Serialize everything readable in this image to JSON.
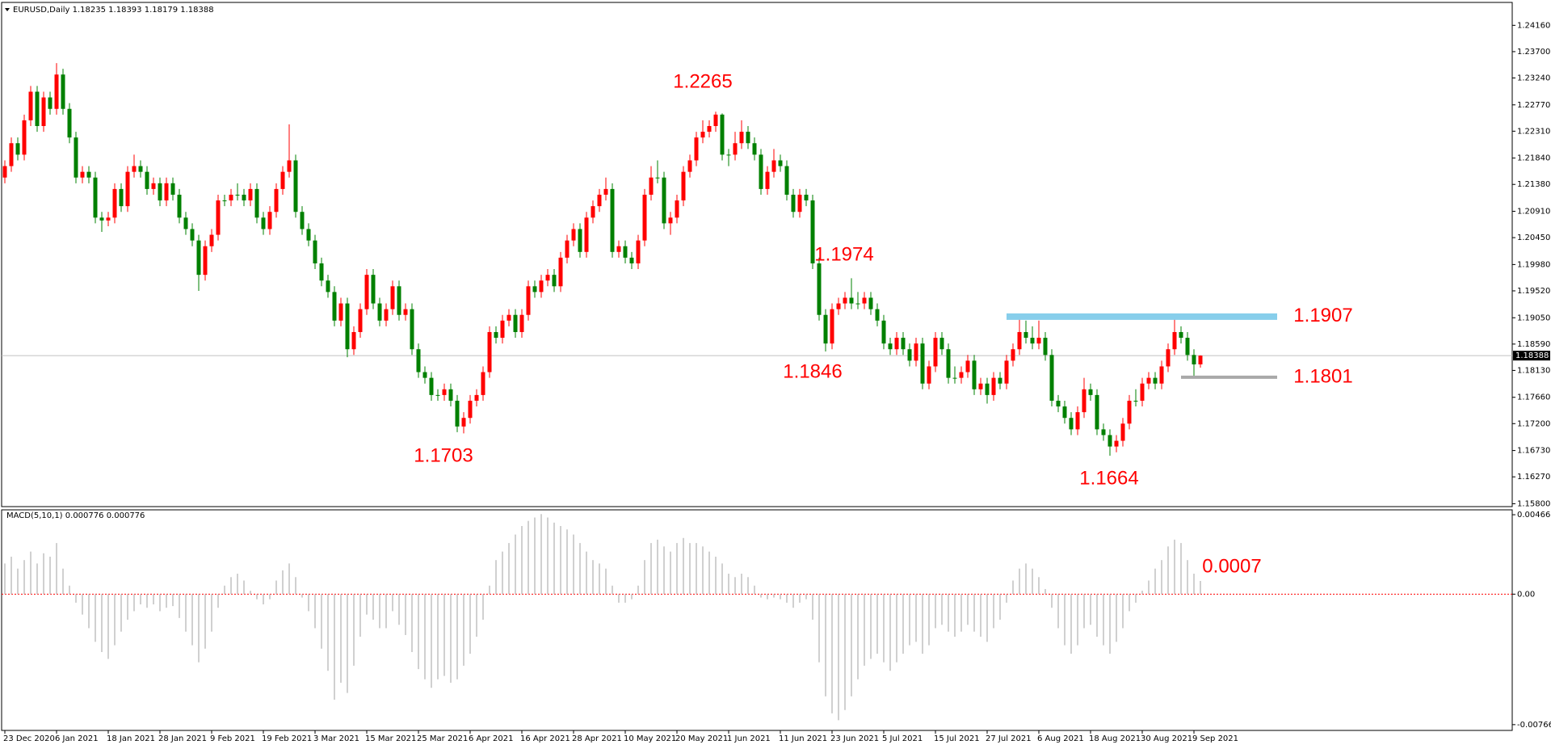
{
  "chart_data": [
    {
      "type": "candlestick",
      "symbol": "EURUSD,Daily",
      "up_color": "#ff0000",
      "down_color": "#008000",
      "price_line_color": "#c0c0c0",
      "categories": [
        "23 Dec 2020",
        null,
        null,
        null,
        null,
        null,
        null,
        null,
        "6 Jan 2021",
        null,
        null,
        null,
        null,
        null,
        null,
        null,
        "18 Jan 2021",
        null,
        null,
        null,
        null,
        null,
        null,
        null,
        "28 Jan 2021",
        null,
        null,
        null,
        null,
        null,
        null,
        null,
        "9 Feb 2021",
        null,
        null,
        null,
        null,
        null,
        null,
        null,
        "19 Feb 2021",
        null,
        null,
        null,
        null,
        null,
        null,
        null,
        "3 Mar 2021",
        null,
        null,
        null,
        null,
        null,
        null,
        null,
        "15 Mar 2021",
        null,
        null,
        null,
        null,
        null,
        null,
        null,
        "25 Mar 2021",
        null,
        null,
        null,
        null,
        null,
        null,
        null,
        "6 Apr 2021",
        null,
        null,
        null,
        null,
        null,
        null,
        null,
        "16 Apr 2021",
        null,
        null,
        null,
        null,
        null,
        null,
        null,
        "28 Apr 2021",
        null,
        null,
        null,
        null,
        null,
        null,
        null,
        "10 May 2021",
        null,
        null,
        null,
        null,
        null,
        null,
        null,
        "20 May 2021",
        null,
        null,
        null,
        null,
        null,
        null,
        null,
        "1 Jun 2021",
        null,
        null,
        null,
        null,
        null,
        null,
        null,
        "11 Jun 2021",
        null,
        null,
        null,
        null,
        null,
        null,
        null,
        "23 Jun 2021",
        null,
        null,
        null,
        null,
        null,
        null,
        null,
        "5 Jul 2021",
        null,
        null,
        null,
        null,
        null,
        null,
        null,
        "15 Jul 2021",
        null,
        null,
        null,
        null,
        null,
        null,
        null,
        "27 Jul 2021",
        null,
        null,
        null,
        null,
        null,
        null,
        null,
        "6 Aug 2021",
        null,
        null,
        null,
        null,
        null,
        null,
        null,
        "18 Aug 2021",
        null,
        null,
        null,
        null,
        null,
        null,
        null,
        "30 Aug 2021",
        null,
        null,
        null,
        null,
        null,
        null,
        null,
        "9 Sep 2021",
        null
      ],
      "open": [
        1.215,
        1.217,
        1.221,
        1.219,
        1.225,
        1.23,
        1.224,
        1.229,
        1.227,
        1.233,
        1.227,
        1.222,
        1.215,
        1.216,
        1.215,
        1.208,
        1.2075,
        1.208,
        1.213,
        1.21,
        1.216,
        1.217,
        1.216,
        1.213,
        1.214,
        1.211,
        1.214,
        1.212,
        1.208,
        1.206,
        1.204,
        1.198,
        1.203,
        1.205,
        1.211,
        1.211,
        1.212,
        1.212,
        1.211,
        1.213,
        1.208,
        1.206,
        1.209,
        1.213,
        1.216,
        1.218,
        1.209,
        1.206,
        1.204,
        1.2,
        1.197,
        1.195,
        1.19,
        1.193,
        1.185,
        1.188,
        1.192,
        1.198,
        1.193,
        1.19,
        1.192,
        1.196,
        1.191,
        1.192,
        1.185,
        1.181,
        1.18,
        1.177,
        1.177,
        1.178,
        1.176,
        1.1715,
        1.173,
        1.176,
        1.177,
        1.181,
        1.188,
        1.187,
        1.19,
        1.191,
        1.188,
        1.191,
        1.196,
        1.195,
        1.197,
        1.198,
        1.196,
        1.201,
        1.204,
        1.206,
        1.202,
        1.208,
        1.21,
        1.212,
        1.213,
        1.202,
        1.203,
        1.201,
        1.2,
        1.204,
        1.212,
        1.215,
        1.215,
        1.207,
        1.208,
        1.211,
        1.216,
        1.218,
        1.222,
        1.223,
        1.224,
        1.226,
        1.219,
        1.219,
        1.221,
        1.223,
        1.221,
        1.219,
        1.213,
        1.216,
        1.218,
        1.217,
        1.212,
        1.209,
        1.212,
        1.211,
        1.2,
        1.191,
        1.186,
        1.192,
        1.193,
        1.194,
        1.193,
        1.193,
        1.194,
        1.192,
        1.19,
        1.186,
        1.185,
        1.187,
        1.185,
        1.183,
        1.186,
        1.179,
        1.182,
        1.187,
        1.185,
        1.18,
        1.18,
        1.181,
        1.183,
        1.178,
        1.179,
        1.177,
        1.18,
        1.179,
        1.183,
        1.185,
        1.188,
        1.187,
        1.186,
        1.187,
        1.184,
        1.176,
        1.175,
        1.173,
        1.171,
        1.174,
        1.178,
        1.177,
        1.171,
        1.17,
        1.168,
        1.169,
        1.172,
        1.176,
        1.176,
        1.179,
        1.18,
        1.179,
        1.182,
        1.185,
        1.188,
        1.187,
        1.184,
        1.18235
      ],
      "high": [
        1.218,
        1.222,
        1.222,
        1.226,
        1.231,
        1.231,
        1.23,
        1.23,
        1.235,
        1.234,
        1.228,
        1.223,
        1.217,
        1.217,
        1.216,
        1.209,
        1.209,
        1.214,
        1.214,
        1.217,
        1.219,
        1.218,
        1.217,
        1.215,
        1.215,
        1.215,
        1.215,
        1.213,
        1.209,
        1.207,
        1.205,
        1.204,
        1.206,
        1.212,
        1.212,
        1.213,
        1.214,
        1.213,
        1.214,
        1.214,
        1.209,
        1.21,
        1.214,
        1.217,
        1.2243,
        1.219,
        1.21,
        1.207,
        1.205,
        1.201,
        1.198,
        1.196,
        1.194,
        1.194,
        1.189,
        1.193,
        1.199,
        1.199,
        1.194,
        1.193,
        1.197,
        1.197,
        1.193,
        1.193,
        1.186,
        1.182,
        1.181,
        1.178,
        1.179,
        1.179,
        1.177,
        1.174,
        1.177,
        1.178,
        1.182,
        1.189,
        1.189,
        1.191,
        1.192,
        1.192,
        1.192,
        1.197,
        1.197,
        1.198,
        1.199,
        1.199,
        1.202,
        1.205,
        1.207,
        1.207,
        1.209,
        1.211,
        1.213,
        1.215,
        1.214,
        1.204,
        1.204,
        1.202,
        1.205,
        1.213,
        1.217,
        1.218,
        1.216,
        1.209,
        1.212,
        1.217,
        1.219,
        1.223,
        1.225,
        1.225,
        1.2265,
        1.2262,
        1.22,
        1.223,
        1.225,
        1.224,
        1.222,
        1.22,
        1.217,
        1.22,
        1.219,
        1.218,
        1.213,
        1.213,
        1.213,
        1.212,
        1.201,
        1.192,
        1.193,
        1.194,
        1.195,
        1.1974,
        1.195,
        1.195,
        1.195,
        1.193,
        1.191,
        1.187,
        1.188,
        1.188,
        1.186,
        1.187,
        1.187,
        1.183,
        1.188,
        1.188,
        1.186,
        1.182,
        1.182,
        1.184,
        1.184,
        1.18,
        1.18,
        1.181,
        1.181,
        1.184,
        1.186,
        1.1907,
        1.19,
        1.189,
        1.19,
        1.188,
        1.185,
        1.177,
        1.176,
        1.174,
        1.175,
        1.18,
        1.179,
        1.178,
        1.172,
        1.171,
        1.17,
        1.173,
        1.177,
        1.178,
        1.18,
        1.181,
        1.181,
        1.183,
        1.186,
        1.1907,
        1.189,
        1.188,
        1.185,
        1.18393
      ],
      "low": [
        1.214,
        1.216,
        1.218,
        1.218,
        1.224,
        1.223,
        1.223,
        1.226,
        1.226,
        1.226,
        1.221,
        1.214,
        1.214,
        1.214,
        1.207,
        1.2055,
        1.2065,
        1.207,
        1.209,
        1.209,
        1.215,
        1.215,
        1.212,
        1.212,
        1.21,
        1.21,
        1.211,
        1.207,
        1.205,
        1.203,
        1.1952,
        1.197,
        1.202,
        1.204,
        1.21,
        1.21,
        1.211,
        1.21,
        1.21,
        1.207,
        1.205,
        1.205,
        1.208,
        1.212,
        1.215,
        1.208,
        1.205,
        1.203,
        1.199,
        1.196,
        1.194,
        1.189,
        1.189,
        1.1836,
        1.184,
        1.187,
        1.191,
        1.192,
        1.189,
        1.189,
        1.191,
        1.19,
        1.19,
        1.184,
        1.18,
        1.179,
        1.176,
        1.176,
        1.176,
        1.175,
        1.1705,
        1.1703,
        1.172,
        1.175,
        1.176,
        1.18,
        1.186,
        1.186,
        1.189,
        1.187,
        1.187,
        1.19,
        1.194,
        1.194,
        1.196,
        1.195,
        1.195,
        1.2,
        1.203,
        1.201,
        1.201,
        1.207,
        1.209,
        1.211,
        1.201,
        1.201,
        1.2,
        1.199,
        1.199,
        1.203,
        1.211,
        1.214,
        1.206,
        1.205,
        1.207,
        1.21,
        1.215,
        1.217,
        1.221,
        1.222,
        1.223,
        1.218,
        1.217,
        1.218,
        1.22,
        1.22,
        1.218,
        1.212,
        1.212,
        1.215,
        1.216,
        1.211,
        1.208,
        1.208,
        1.21,
        1.199,
        1.19,
        1.1846,
        1.185,
        1.191,
        1.192,
        1.192,
        1.192,
        1.192,
        1.191,
        1.189,
        1.185,
        1.184,
        1.184,
        1.184,
        1.182,
        1.182,
        1.178,
        1.178,
        1.181,
        1.184,
        1.179,
        1.179,
        1.179,
        1.18,
        1.177,
        1.177,
        1.1755,
        1.176,
        1.178,
        1.178,
        1.182,
        1.184,
        1.186,
        1.185,
        1.185,
        1.183,
        1.175,
        1.174,
        1.172,
        1.17,
        1.17,
        1.173,
        1.176,
        1.17,
        1.169,
        1.1664,
        1.167,
        1.168,
        1.171,
        1.175,
        1.175,
        1.178,
        1.178,
        1.178,
        1.181,
        1.184,
        1.186,
        1.183,
        1.1801,
        1.18179
      ],
      "close": [
        1.217,
        1.221,
        1.219,
        1.225,
        1.23,
        1.224,
        1.229,
        1.227,
        1.233,
        1.227,
        1.222,
        1.215,
        1.216,
        1.215,
        1.208,
        1.2075,
        1.208,
        1.213,
        1.21,
        1.216,
        1.217,
        1.216,
        1.213,
        1.214,
        1.211,
        1.214,
        1.212,
        1.208,
        1.206,
        1.204,
        1.198,
        1.203,
        1.205,
        1.211,
        1.211,
        1.212,
        1.212,
        1.211,
        1.213,
        1.208,
        1.206,
        1.209,
        1.213,
        1.216,
        1.218,
        1.209,
        1.206,
        1.204,
        1.2,
        1.197,
        1.195,
        1.19,
        1.193,
        1.185,
        1.188,
        1.192,
        1.198,
        1.193,
        1.19,
        1.192,
        1.196,
        1.191,
        1.192,
        1.185,
        1.181,
        1.18,
        1.177,
        1.177,
        1.178,
        1.176,
        1.1715,
        1.173,
        1.176,
        1.177,
        1.181,
        1.188,
        1.187,
        1.19,
        1.191,
        1.188,
        1.191,
        1.196,
        1.195,
        1.197,
        1.198,
        1.196,
        1.201,
        1.204,
        1.206,
        1.202,
        1.208,
        1.21,
        1.212,
        1.213,
        1.202,
        1.203,
        1.201,
        1.2,
        1.204,
        1.212,
        1.215,
        1.215,
        1.207,
        1.208,
        1.211,
        1.216,
        1.218,
        1.222,
        1.223,
        1.224,
        1.226,
        1.219,
        1.219,
        1.221,
        1.223,
        1.221,
        1.219,
        1.213,
        1.216,
        1.218,
        1.217,
        1.212,
        1.209,
        1.212,
        1.211,
        1.2,
        1.191,
        1.186,
        1.192,
        1.193,
        1.194,
        1.193,
        1.193,
        1.194,
        1.192,
        1.19,
        1.186,
        1.185,
        1.187,
        1.185,
        1.183,
        1.186,
        1.179,
        1.182,
        1.187,
        1.185,
        1.18,
        1.18,
        1.181,
        1.183,
        1.178,
        1.179,
        1.177,
        1.18,
        1.179,
        1.183,
        1.185,
        1.188,
        1.187,
        1.186,
        1.187,
        1.184,
        1.176,
        1.175,
        1.173,
        1.171,
        1.174,
        1.178,
        1.177,
        1.171,
        1.17,
        1.168,
        1.169,
        1.172,
        1.176,
        1.176,
        1.179,
        1.18,
        1.179,
        1.182,
        1.185,
        1.188,
        1.187,
        1.184,
        1.18235,
        1.18388
      ],
      "ylim": [
        1.1575,
        1.2456
      ],
      "yticks": [
        {
          "value": 1.2416,
          "label": "1.24160"
        },
        {
          "value": 1.237,
          "label": "1.23700"
        },
        {
          "value": 1.2324,
          "label": "1.23240"
        },
        {
          "value": 1.2277,
          "label": "1.22770"
        },
        {
          "value": 1.2231,
          "label": "1.22310"
        },
        {
          "value": 1.2184,
          "label": "1.21840"
        },
        {
          "value": 1.2138,
          "label": "1.21380"
        },
        {
          "value": 1.2091,
          "label": "1.20910"
        },
        {
          "value": 1.2045,
          "label": "1.20450"
        },
        {
          "value": 1.1998,
          "label": "1.19980"
        },
        {
          "value": 1.1952,
          "label": "1.19520"
        },
        {
          "value": 1.1905,
          "label": "1.19050"
        },
        {
          "value": 1.1859,
          "label": "1.18590"
        },
        {
          "value": 1.1813,
          "label": "1.18130"
        },
        {
          "value": 1.1766,
          "label": "1.17660"
        },
        {
          "value": 1.172,
          "label": "1.17200"
        },
        {
          "value": 1.1673,
          "label": "1.16730"
        },
        {
          "value": 1.1627,
          "label": "1.16270"
        },
        {
          "value": 1.158,
          "label": "1.15800"
        }
      ],
      "levels": [
        {
          "value": 1.1907,
          "label": "1.1907",
          "color": "#87ceeb"
        },
        {
          "value": 1.1801,
          "label": "1.1801",
          "color": "#a9a9a9"
        }
      ],
      "annotations": [
        "1.2265",
        "1.1974",
        "1.1846",
        "1.1703",
        "1.1664"
      ]
    },
    {
      "type": "bar",
      "title": "MACD(5,10,1)",
      "color": "#c0c0c0",
      "zero_line_color": "#ff0000",
      "values": [
        0.0018,
        0.0022,
        0.0015,
        0.002,
        0.0025,
        0.0018,
        0.0024,
        0.0022,
        0.003,
        0.0015,
        0.0005,
        -0.0005,
        -0.0012,
        -0.002,
        -0.0028,
        -0.0034,
        -0.0038,
        -0.003,
        -0.0022,
        -0.0015,
        -0.001,
        -0.0006,
        -0.0008,
        -0.0006,
        -0.001,
        -0.0008,
        -0.0007,
        -0.0014,
        -0.0022,
        -0.003,
        -0.004,
        -0.0032,
        -0.0022,
        -0.0008,
        0.0005,
        0.001,
        0.0012,
        0.0008,
        0.0002,
        -0.0003,
        -0.0006,
        -0.0003,
        0.0008,
        0.0014,
        0.0018,
        0.001,
        -0.0002,
        -0.001,
        -0.002,
        -0.0032,
        -0.0045,
        -0.0062,
        -0.0052,
        -0.0058,
        -0.0042,
        -0.0025,
        -0.0012,
        -0.0015,
        -0.002,
        -0.002,
        -0.001,
        -0.0018,
        -0.0024,
        -0.0034,
        -0.0044,
        -0.005,
        -0.0055,
        -0.005,
        -0.0048,
        -0.0052,
        -0.005,
        -0.0042,
        -0.0035,
        -0.0025,
        -0.0015,
        0.0005,
        0.002,
        0.0025,
        0.003,
        0.0035,
        0.004,
        0.0043,
        0.0045,
        0.0047,
        0.0045,
        0.0042,
        0.004,
        0.0038,
        0.0035,
        0.003,
        0.0025,
        0.002,
        0.0018,
        0.0015,
        0.0005,
        -0.0005,
        -0.0005,
        -0.0003,
        0.0005,
        0.002,
        0.003,
        0.0032,
        0.0028,
        0.0025,
        0.003,
        0.0033,
        0.003,
        0.003,
        0.0028,
        0.0025,
        0.0022,
        0.0018,
        0.0012,
        0.001,
        0.0012,
        0.001,
        0.0005,
        -0.0002,
        -0.0003,
        -0.0002,
        -0.0003,
        -0.0005,
        -0.0008,
        -0.0005,
        -0.0003,
        -0.0015,
        -0.004,
        -0.006,
        -0.007,
        -0.0074,
        -0.0068,
        -0.006,
        -0.005,
        -0.0042,
        -0.0038,
        -0.0035,
        -0.004,
        -0.0045,
        -0.004,
        -0.0035,
        -0.003,
        -0.0028,
        -0.0035,
        -0.003,
        -0.002,
        -0.0018,
        -0.0022,
        -0.0025,
        -0.0022,
        -0.0018,
        -0.0022,
        -0.0025,
        -0.0028,
        -0.002,
        -0.0015,
        -0.0005,
        0.0008,
        0.0015,
        0.0018,
        0.0015,
        0.001,
        0.0003,
        -0.0008,
        -0.002,
        -0.003,
        -0.0035,
        -0.003,
        -0.002,
        -0.0018,
        -0.0025,
        -0.003,
        -0.0035,
        -0.0028,
        -0.002,
        -0.001,
        -0.0005,
        0.0002,
        0.0008,
        0.0015,
        0.002,
        0.0028,
        0.0032,
        0.003,
        0.002,
        0.0012,
        0.000776
      ],
      "ylim": [
        -0.008,
        0.00495
      ],
      "yticks": [
        0.004663,
        {
          "value": 0,
          "label": "0.00"
        },
        -0.007661
      ],
      "annotations": [
        "0.0007"
      ]
    }
  ]
}
